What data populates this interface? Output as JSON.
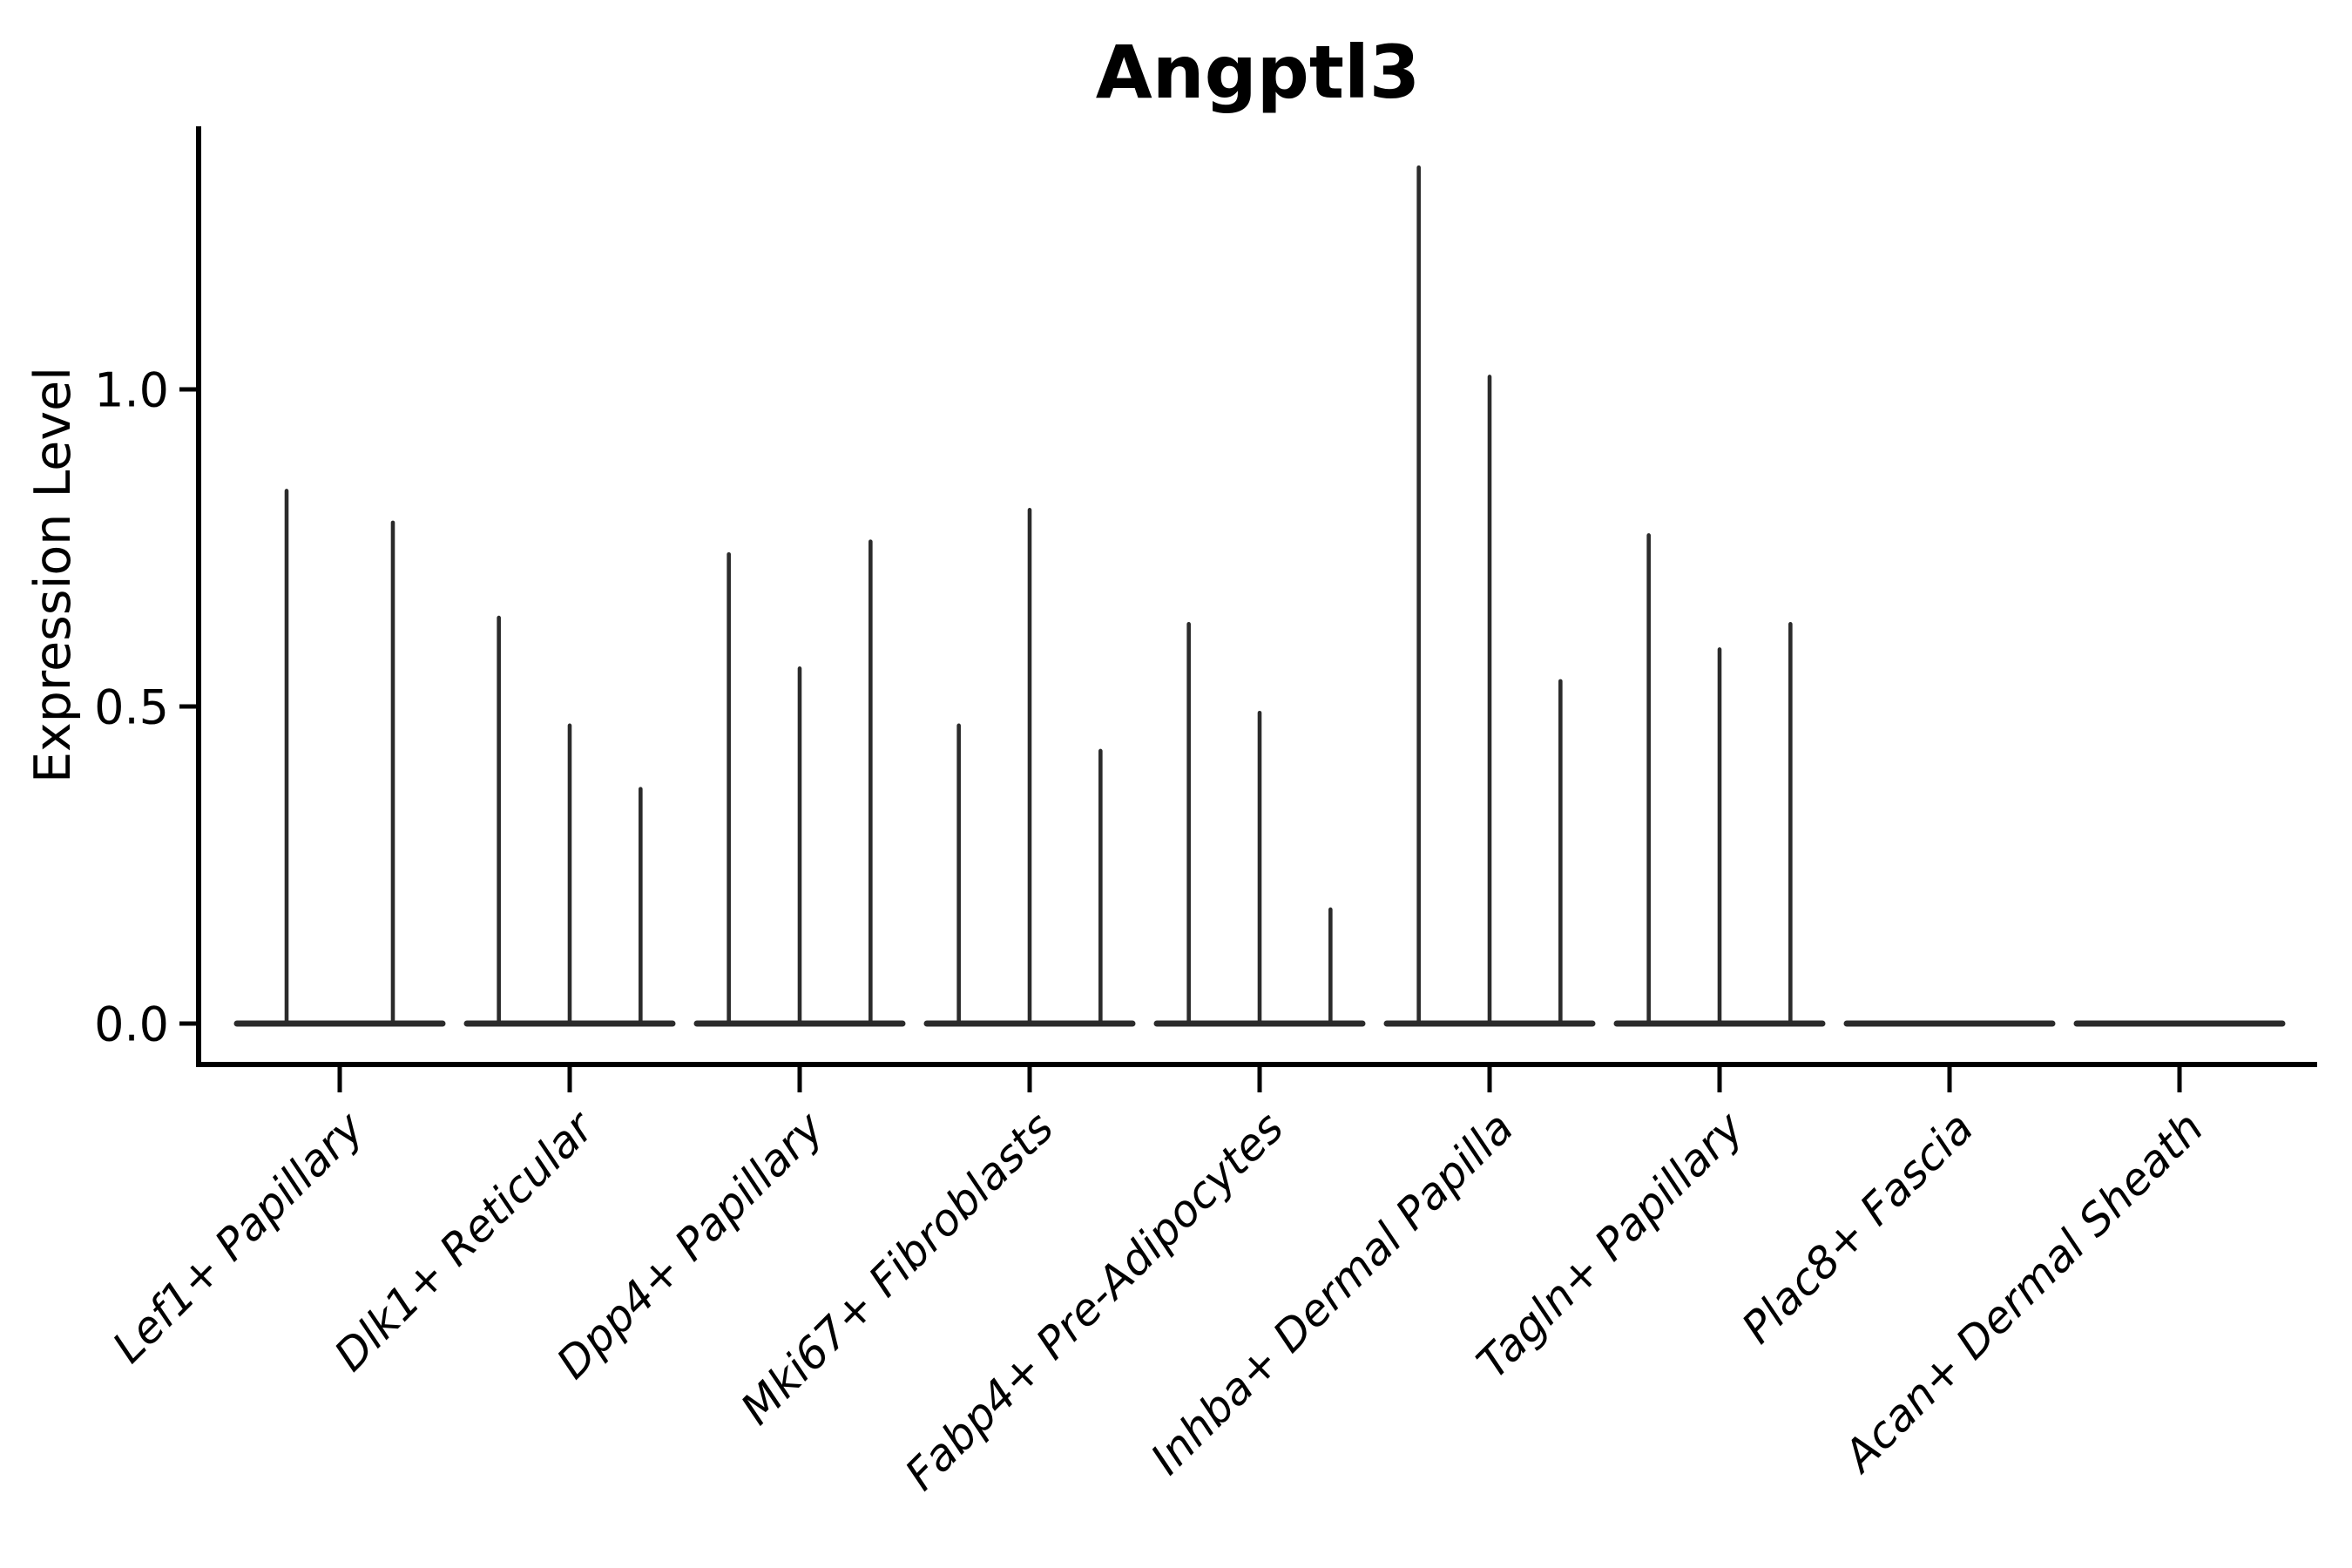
{
  "chart_data": {
    "type": "violin",
    "title": "Angptl3",
    "ylabel": "Expression Level",
    "xlabel": "",
    "ylim": [
      -0.065,
      1.42
    ],
    "grid": false,
    "legend": false,
    "background": "#ffffff",
    "yticks": [
      {
        "value": 0.0,
        "label": "0.0"
      },
      {
        "value": 0.5,
        "label": "0.5"
      },
      {
        "value": 1.0,
        "label": "1.0"
      }
    ],
    "categories": [
      "Lef1+ Papillary",
      "Dlk1+ Reticular",
      "Dpp4+ Papillary",
      "Mki67+ Fibroblasts",
      "Fabp4+ Pre-Adipocytes",
      "Inhba+ Dermal Papilla",
      "Tagln+ Papillary",
      "Plac8+ Fascia",
      "Acan+ Dermal Sheath"
    ],
    "groups": [
      {
        "category": "Lef1+ Papillary",
        "violin_maxima": [
          0.84,
          0.79
        ]
      },
      {
        "category": "Dlk1+ Reticular",
        "violin_maxima": [
          0.64,
          0.47,
          0.37
        ]
      },
      {
        "category": "Dpp4+ Papillary",
        "violin_maxima": [
          0.74,
          0.56,
          0.76
        ]
      },
      {
        "category": "Mki67+ Fibroblasts",
        "violin_maxima": [
          0.47,
          0.81,
          0.43
        ]
      },
      {
        "category": "Fabp4+ Pre-Adipocytes",
        "violin_maxima": [
          0.63,
          0.49,
          0.18
        ]
      },
      {
        "category": "Inhba+ Dermal Papilla",
        "violin_maxima": [
          1.35,
          1.02,
          0.54
        ]
      },
      {
        "category": "Tagln+ Papillary",
        "violin_maxima": [
          0.77,
          0.59,
          0.63
        ]
      },
      {
        "category": "Plac8+ Fascia",
        "violin_maxima": [
          0,
          0,
          0
        ]
      },
      {
        "category": "Acan+ Dermal Sheath",
        "violin_maxima": [
          0,
          0,
          0
        ]
      }
    ],
    "colors": {
      "violin": "#2b2b2b",
      "axis": "#000000",
      "text": "#000000"
    }
  }
}
